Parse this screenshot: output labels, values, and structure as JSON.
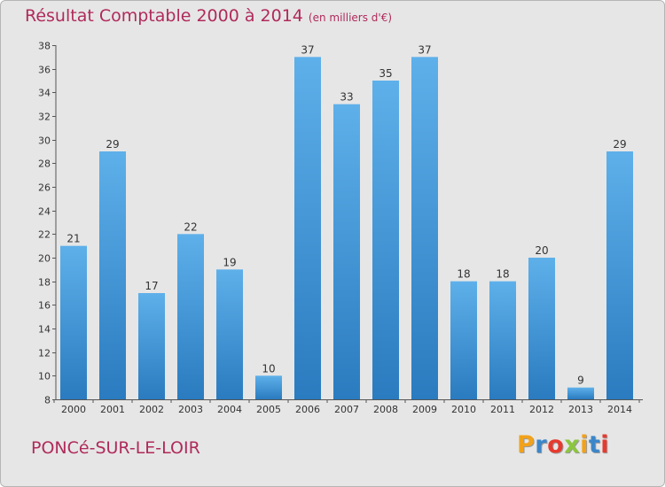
{
  "title": "Résultat Comptable 2000 à 2014",
  "subtitle": "(en milliers d'€)",
  "town": "PONCé-SUR-LE-LOIR",
  "brand": {
    "letters": [
      "P",
      "r",
      "o",
      "x",
      "i",
      "t",
      "i"
    ],
    "colors": [
      "#f2a21a",
      "#3b86c9",
      "#e63a2e",
      "#8cc63f",
      "#f2a21a",
      "#3b86c9",
      "#e63a2e"
    ]
  },
  "colors": {
    "bar_top": "#5eb0ea",
    "bar_bottom": "#2a7bbf",
    "title": "#b02a5b",
    "background": "#e6e6e6"
  },
  "chart_data": {
    "type": "bar",
    "title": "Résultat Comptable 2000 à 2014",
    "ylabel": "en milliers d'€",
    "xlabel": "",
    "categories": [
      "2000",
      "2001",
      "2002",
      "2003",
      "2004",
      "2005",
      "2006",
      "2007",
      "2008",
      "2009",
      "2010",
      "2011",
      "2012",
      "2013",
      "2014"
    ],
    "values": [
      21,
      29,
      17,
      22,
      19,
      10,
      37,
      33,
      35,
      37,
      18,
      18,
      20,
      9,
      29
    ],
    "ylim": [
      8,
      38
    ],
    "yticks": [
      8,
      10,
      12,
      14,
      16,
      18,
      20,
      22,
      24,
      26,
      28,
      30,
      32,
      34,
      36,
      38
    ],
    "grid": false
  }
}
